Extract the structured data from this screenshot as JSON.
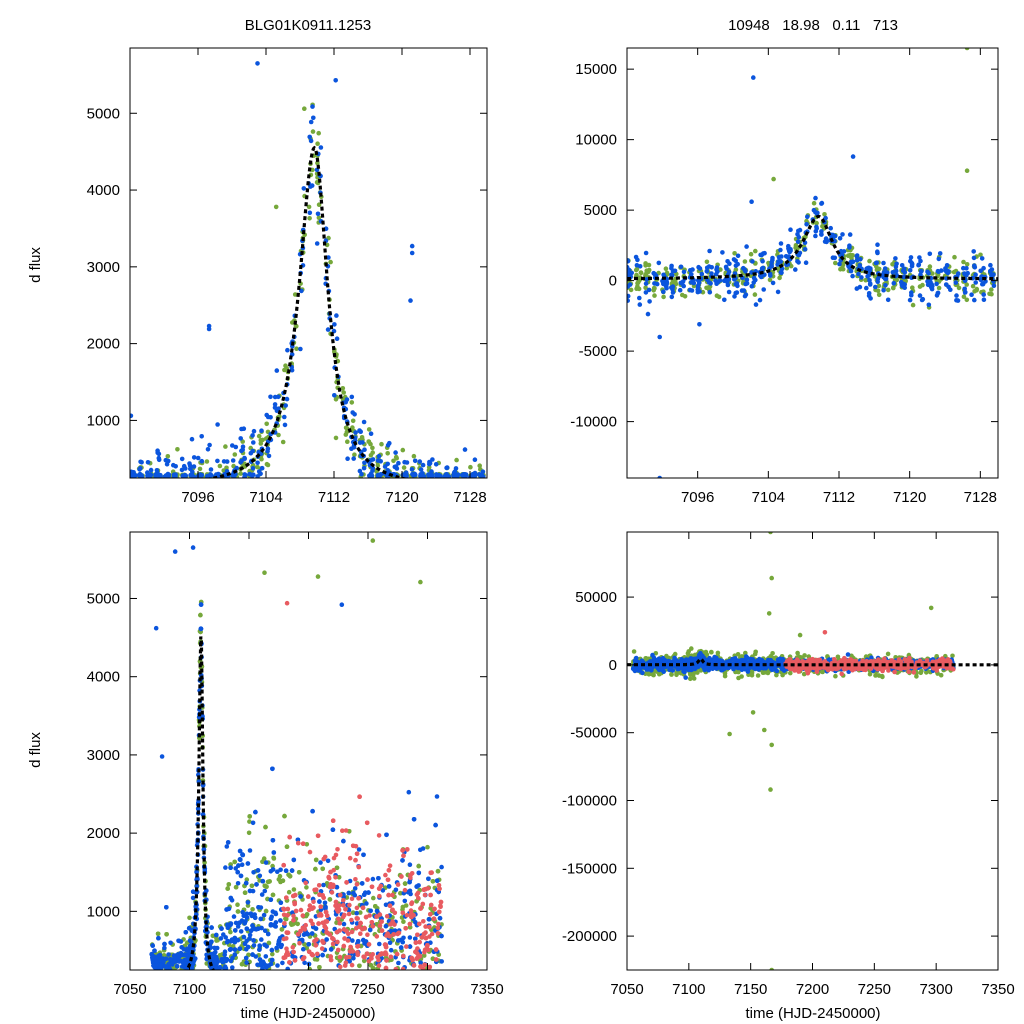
{
  "figure": {
    "title_left": "BLG01K0911.1253",
    "title_right": "10948   18.98   0.11   713",
    "ylabel": "d flux",
    "xlabel": "time (HJD-2450000)"
  },
  "colors": {
    "blue": "#0b55dd",
    "green": "#76a83b",
    "red": "#e85b60",
    "model": "#000000"
  },
  "chart_data": [
    {
      "id": "zoom-left",
      "type": "scatter",
      "title": "BLG01K0911.1253",
      "ylabel": "d flux",
      "xlim": [
        7088,
        7130
      ],
      "ylim": [
        250,
        5850
      ],
      "xticks": [
        7096,
        7104,
        7112,
        7120,
        7128
      ],
      "yticks": [
        1000,
        2000,
        3000,
        4000,
        5000
      ],
      "model": {
        "t0": 7109.7,
        "peak": 4550,
        "tau_rise": 2.2,
        "tau_fall": 1.9,
        "base": 100
      },
      "outliers": [
        {
          "x": 7103.0,
          "y": 5650,
          "s": "blue"
        },
        {
          "x": 7108.5,
          "y": 5060,
          "s": "green"
        },
        {
          "x": 7112.2,
          "y": 5430,
          "s": "blue"
        },
        {
          "x": 7121.2,
          "y": 3270,
          "s": "blue"
        },
        {
          "x": 7121.2,
          "y": 3180,
          "s": "blue"
        },
        {
          "x": 7121.0,
          "y": 2560,
          "s": "blue"
        },
        {
          "x": 7097.3,
          "y": 2230,
          "s": "blue"
        },
        {
          "x": 7097.3,
          "y": 2190,
          "s": "blue"
        },
        {
          "x": 7105.2,
          "y": 3780,
          "s": "green"
        },
        {
          "x": 7088.1,
          "y": 1060,
          "s": "blue"
        }
      ]
    },
    {
      "id": "zoom-right",
      "type": "scatter",
      "title": "10948   18.98   0.11   713",
      "xlim": [
        7088,
        7130
      ],
      "ylim": [
        -14000,
        16500
      ],
      "xticks": [
        7096,
        7104,
        7112,
        7120,
        7128
      ],
      "yticks": [
        15000,
        10000,
        5000,
        0,
        -5000,
        -10000
      ],
      "model": {
        "t0": 7109.7,
        "peak": 4550,
        "tau_rise": 2.2,
        "tau_fall": 1.9,
        "base": 100
      },
      "outliers": [
        {
          "x": 7102.3,
          "y": 14400,
          "s": "blue"
        },
        {
          "x": 7113.6,
          "y": 8800,
          "s": "blue"
        },
        {
          "x": 7104.6,
          "y": 7200,
          "s": "green"
        },
        {
          "x": 7102.1,
          "y": 5600,
          "s": "blue"
        },
        {
          "x": 7126.5,
          "y": 16500,
          "s": "green"
        },
        {
          "x": 7126.5,
          "y": 7800,
          "s": "green"
        },
        {
          "x": 7091.7,
          "y": -4000,
          "s": "blue"
        },
        {
          "x": 7091.7,
          "y": -14000,
          "s": "blue"
        },
        {
          "x": 7096.2,
          "y": -3100,
          "s": "blue"
        },
        {
          "x": 7102.6,
          "y": -1700,
          "s": "blue"
        },
        {
          "x": 7122.2,
          "y": -1900,
          "s": "green"
        },
        {
          "x": 7098.8,
          "y": 2000,
          "s": "blue"
        }
      ]
    },
    {
      "id": "full-left",
      "type": "scatter",
      "ylabel": "d flux",
      "xlabel": "time (HJD-2450000)",
      "xlim": [
        7050,
        7350
      ],
      "ylim": [
        250,
        5850
      ],
      "xticks": [
        7050,
        7100,
        7150,
        7200,
        7250,
        7300,
        7350
      ],
      "yticks": [
        1000,
        2000,
        3000,
        4000,
        5000
      ],
      "model": {
        "t0": 7109.7,
        "peak": 4550,
        "tau_rise": 2.2,
        "tau_fall": 1.9,
        "base": 100
      },
      "data_xrange": [
        7068,
        7312
      ],
      "red_xrange": [
        7178,
        7312
      ],
      "outliers": [
        {
          "x": 7088.0,
          "y": 5600,
          "s": "blue"
        },
        {
          "x": 7103.0,
          "y": 5650,
          "s": "blue"
        },
        {
          "x": 7072.0,
          "y": 4620,
          "s": "blue"
        },
        {
          "x": 7077.0,
          "y": 2980,
          "s": "blue"
        },
        {
          "x": 7208.0,
          "y": 5280,
          "s": "green"
        },
        {
          "x": 7254.0,
          "y": 5740,
          "s": "green"
        },
        {
          "x": 7294.0,
          "y": 5210,
          "s": "green"
        },
        {
          "x": 7228.0,
          "y": 4920,
          "s": "blue"
        },
        {
          "x": 7182.0,
          "y": 4940,
          "s": "red"
        },
        {
          "x": 7163.0,
          "y": 5330,
          "s": "green"
        }
      ]
    },
    {
      "id": "full-right",
      "type": "scatter",
      "xlabel": "time (HJD-2450000)",
      "xlim": [
        7050,
        7350
      ],
      "ylim": [
        -225000,
        98000
      ],
      "xticks": [
        7050,
        7100,
        7150,
        7200,
        7250,
        7300,
        7350
      ],
      "yticks": [
        50000,
        0,
        -50000,
        -100000,
        -150000,
        -200000
      ],
      "model": {
        "t0": 7109.7,
        "peak": 4550,
        "tau_rise": 2.2,
        "tau_fall": 1.9,
        "base": 100
      },
      "data_xrange": [
        7055,
        7314
      ],
      "red_xrange": [
        7178,
        7314
      ],
      "outliers": [
        {
          "x": 7166.0,
          "y": 98000,
          "s": "green"
        },
        {
          "x": 7167.0,
          "y": 64000,
          "s": "green"
        },
        {
          "x": 7165.0,
          "y": 38000,
          "s": "green"
        },
        {
          "x": 7296.0,
          "y": 42000,
          "s": "green"
        },
        {
          "x": 7167.0,
          "y": -59000,
          "s": "green"
        },
        {
          "x": 7166.0,
          "y": -92000,
          "s": "green"
        },
        {
          "x": 7167.0,
          "y": -225000,
          "s": "green"
        },
        {
          "x": 7133.0,
          "y": -51000,
          "s": "green"
        },
        {
          "x": 7152.0,
          "y": -35000,
          "s": "green"
        },
        {
          "x": 7161.0,
          "y": -48000,
          "s": "green"
        },
        {
          "x": 7210.0,
          "y": 24000,
          "s": "red"
        },
        {
          "x": 7190.0,
          "y": 22000,
          "s": "green"
        }
      ]
    }
  ]
}
